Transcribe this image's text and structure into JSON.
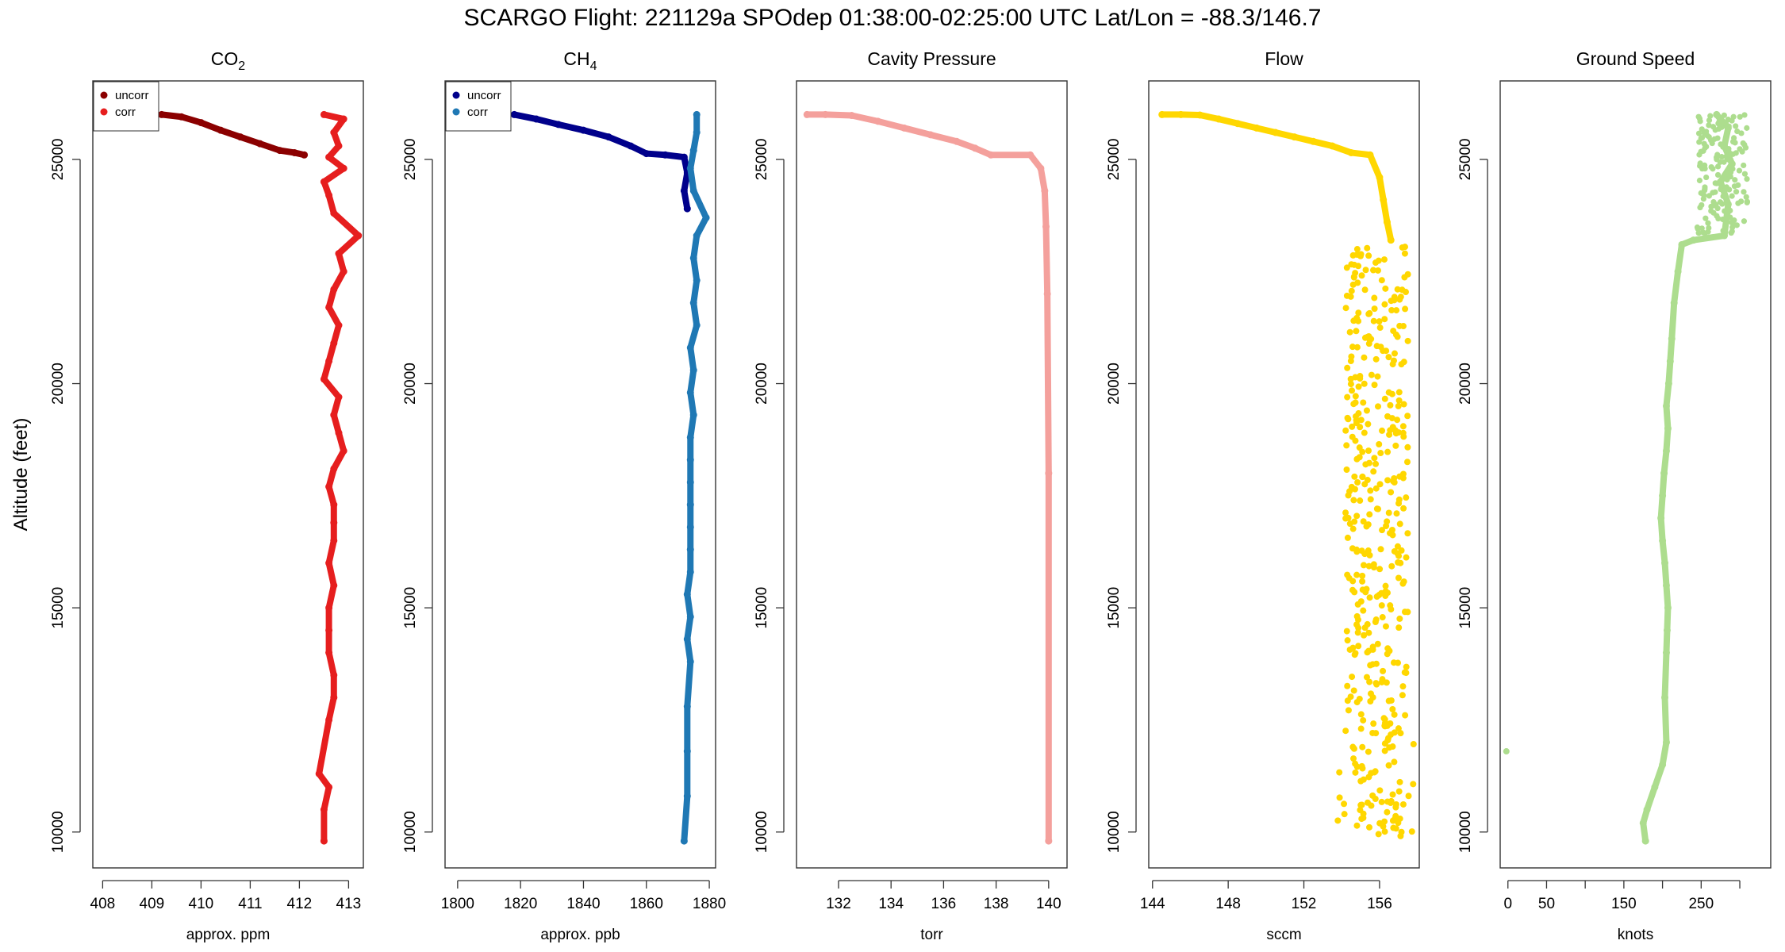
{
  "title": "SCARGO Flight: 221129a  SPOdep  01:38:00-02:25:00 UTC  Lat/Lon = -88.3/146.7",
  "ylabel": "Altitude (feet)",
  "chart_data": [
    {
      "type": "scatter",
      "title": "CO",
      "title_sub": "2",
      "xlabel": "approx. ppm",
      "xlim": [
        407.8,
        413.3
      ],
      "ylim": [
        9200,
        26750
      ],
      "xticks": [
        408,
        409,
        410,
        411,
        412,
        413
      ],
      "yticks": [
        10000,
        15000,
        20000,
        25000
      ],
      "legend": {
        "position": "top-left",
        "entries": [
          {
            "label": "uncorr",
            "color": "#8b0000"
          },
          {
            "label": "corr",
            "color": "#e61e1e"
          }
        ]
      },
      "series": [
        {
          "name": "uncorr",
          "color": "#8b0000",
          "x": [
            409.2,
            409.6,
            410.0,
            410.4,
            410.8,
            411.2,
            411.6,
            411.9,
            412.1
          ],
          "y": [
            26000,
            25950,
            25820,
            25650,
            25500,
            25350,
            25200,
            25150,
            25100
          ]
        },
        {
          "name": "corr",
          "color": "#e61e1e",
          "x": [
            412.5,
            412.9,
            412.7,
            412.8,
            412.6,
            412.9,
            412.5,
            412.6,
            412.7,
            413.2,
            412.8,
            412.9,
            412.7,
            412.6,
            412.8,
            412.7,
            412.6,
            412.5,
            412.8,
            412.7,
            412.8,
            412.9,
            412.7,
            412.6,
            412.7,
            412.7,
            412.7,
            412.6,
            412.7,
            412.6,
            412.6,
            412.6,
            412.7,
            412.7,
            412.6,
            412.4,
            412.6,
            412.5,
            412.5
          ],
          "y": [
            26000,
            25900,
            25600,
            25300,
            25050,
            24800,
            24500,
            24200,
            23800,
            23300,
            22900,
            22500,
            22100,
            21700,
            21300,
            20900,
            20500,
            20100,
            19700,
            19300,
            18900,
            18500,
            18100,
            17700,
            17300,
            16900,
            16500,
            16000,
            15500,
            15000,
            14500,
            14000,
            13500,
            13000,
            12500,
            11300,
            11000,
            10500,
            9800
          ]
        }
      ]
    },
    {
      "type": "scatter",
      "title": "CH",
      "title_sub": "4",
      "xlabel": "approx. ppb",
      "xlim": [
        1796,
        1882
      ],
      "ylim": [
        9200,
        26750
      ],
      "xticks": [
        1800,
        1820,
        1840,
        1860,
        1880
      ],
      "yticks": [
        10000,
        15000,
        20000,
        25000
      ],
      "legend": {
        "position": "top-left",
        "entries": [
          {
            "label": "uncorr",
            "color": "#00008b"
          },
          {
            "label": "corr",
            "color": "#1f78b4"
          }
        ]
      },
      "series": [
        {
          "name": "uncorr",
          "color": "#00008b",
          "x": [
            1818,
            1825,
            1832,
            1840,
            1848,
            1855,
            1860,
            1866,
            1872,
            1873,
            1872,
            1873
          ],
          "y": [
            26000,
            25900,
            25780,
            25650,
            25500,
            25300,
            25130,
            25100,
            25050,
            24700,
            24300,
            23900
          ]
        },
        {
          "name": "corr",
          "color": "#1f78b4",
          "x": [
            1876,
            1876,
            1875,
            1874,
            1875,
            1879,
            1876,
            1875,
            1876,
            1875,
            1876,
            1874,
            1875,
            1874,
            1875,
            1874,
            1874,
            1874,
            1874,
            1874,
            1874,
            1874,
            1873,
            1874,
            1873,
            1874,
            1873,
            1873,
            1873,
            1872
          ],
          "y": [
            26000,
            25600,
            25200,
            24800,
            24300,
            23700,
            23300,
            22800,
            22300,
            21800,
            21300,
            20800,
            20300,
            19800,
            19300,
            18800,
            18300,
            17800,
            17300,
            16800,
            16300,
            15800,
            15300,
            14800,
            14300,
            13800,
            12800,
            11800,
            10800,
            9800
          ]
        }
      ]
    },
    {
      "type": "scatter",
      "title": "Cavity Pressure",
      "xlabel": "torr",
      "xlim": [
        130.4,
        140.7
      ],
      "ylim": [
        9200,
        26750
      ],
      "xticks": [
        132,
        134,
        136,
        138,
        140
      ],
      "yticks": [
        10000,
        15000,
        20000,
        25000
      ],
      "series": [
        {
          "name": "pressure",
          "color": "#f4a09c",
          "x": [
            130.8,
            131.5,
            132.5,
            133.5,
            134.5,
            135.5,
            136.5,
            137.2,
            137.8,
            139.3,
            139.7,
            139.85,
            139.9,
            139.95,
            140.0,
            140.0
          ],
          "y": [
            26000,
            26000,
            25980,
            25850,
            25700,
            25550,
            25400,
            25250,
            25100,
            25100,
            24800,
            24300,
            23500,
            22000,
            18000,
            9800
          ]
        }
      ]
    },
    {
      "type": "scatter",
      "title": "Flow",
      "xlabel": "sccm",
      "xlim": [
        143.8,
        158.1
      ],
      "ylim": [
        9200,
        26750
      ],
      "xticks": [
        144,
        148,
        152,
        156
      ],
      "yticks": [
        10000,
        15000,
        20000,
        25000
      ],
      "series": [
        {
          "name": "flow",
          "color": "#ffd700",
          "x": [
            144.5,
            145.5,
            146.5,
            147.5,
            148.5,
            149.5,
            150.5,
            151.5,
            152.5,
            153.5,
            154.5,
            155.5,
            156.0,
            156.2,
            156.4,
            156.6
          ],
          "y": [
            26000,
            26000,
            25990,
            25900,
            25800,
            25700,
            25600,
            25500,
            25400,
            25300,
            25150,
            25100,
            24600,
            24100,
            23600,
            23200
          ]
        }
      ]
    },
    {
      "type": "scatter",
      "title": "Ground Speed",
      "xlabel": "knots",
      "xlim": [
        -10,
        340
      ],
      "ylim": [
        9200,
        26750
      ],
      "xticks": [
        0,
        50,
        150,
        250
      ],
      "xticks_unlabeled": [
        100,
        200,
        300
      ],
      "yticks": [
        10000,
        15000,
        20000,
        25000
      ],
      "series": [
        {
          "name": "ground speed",
          "color": "#addd8e",
          "x": [
            270,
            285,
            280,
            290,
            275,
            285,
            280,
            240,
            225,
            220,
            215,
            212,
            210,
            208,
            205,
            207,
            205,
            202,
            200,
            198,
            200,
            203,
            205,
            207,
            206,
            205,
            203,
            205,
            200,
            190,
            180,
            175,
            178
          ],
          "y": [
            26000,
            25700,
            25300,
            24900,
            24500,
            24000,
            23300,
            23200,
            23100,
            22500,
            21800,
            21000,
            20500,
            20000,
            19500,
            19000,
            18500,
            18000,
            17500,
            17000,
            16500,
            16000,
            15500,
            15000,
            14500,
            14000,
            13000,
            12000,
            11500,
            11000,
            10500,
            10200,
            9800
          ]
        }
      ]
    }
  ]
}
